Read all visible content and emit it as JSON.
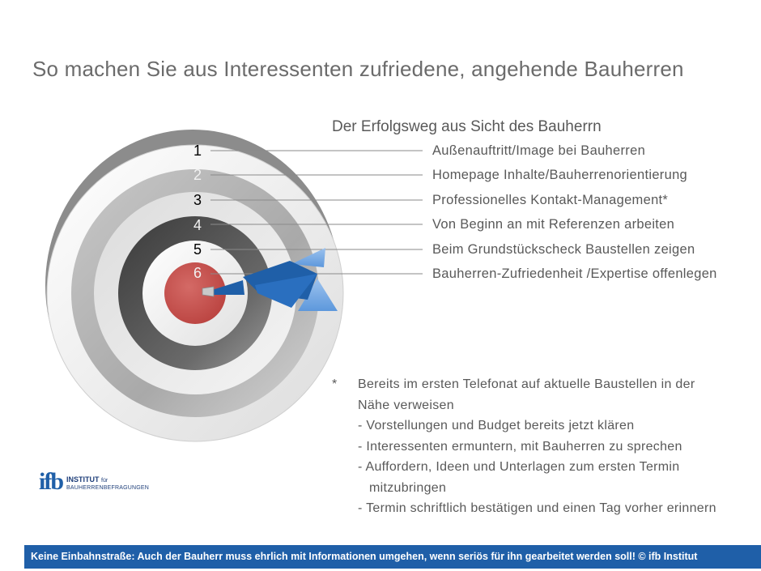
{
  "title": "So machen Sie aus Interessenten zufriedene, angehende Bauherren",
  "subtitle": "Der Erfolgsweg aus Sicht des Bauherrn",
  "rings": [
    {
      "number": "1",
      "label": "Außenauftritt/Image  bei Bauherren"
    },
    {
      "number": "2",
      "label": "Homepage  Inhalte/Bauherrenorientierung"
    },
    {
      "number": "3",
      "label": "Professionelles  Kontakt-Management*"
    },
    {
      "number": "4",
      "label": "Von Beginn  an mit Referenzen  arbeiten"
    },
    {
      "number": "5",
      "label": "Beim Grundstückscheck  Baustellen  zeigen"
    },
    {
      "number": "6",
      "label": "Bauherren-Zufriedenheit  /Expertise  offenlegen"
    }
  ],
  "note": {
    "star": "*",
    "lines": [
      "Bereits im ersten Telefonat auf aktuelle Baustellen in der",
      "Nähe verweisen",
      "-  Vorstellungen  und Budget  bereits  jetzt klären",
      "-  Interessenten  ermuntern,  mit Bauherren zu sprechen",
      "-  Auffordern,  Ideen und Unterlagen zum ersten  Termin",
      "mitzubringen",
      "- Termin schriftlich bestätigen und einen Tag vorher erinnern"
    ]
  },
  "logo": {
    "mark": "ifb",
    "line1": "INSTITUT",
    "line1_small": "für",
    "line2": "BAUHERRENBEFRAGUNGEN"
  },
  "footer": "Keine Einbahnstraße: Auch der Bauherr muss ehrlich mit Informationen umgehen, wenn seriös für ihn gearbeitet werden soll!  © ifb Institut",
  "colors": {
    "footer_bg": "#1f5fa8",
    "bullseye": "#c0504d",
    "dart": "#1f5fa8",
    "text": "#595959"
  }
}
